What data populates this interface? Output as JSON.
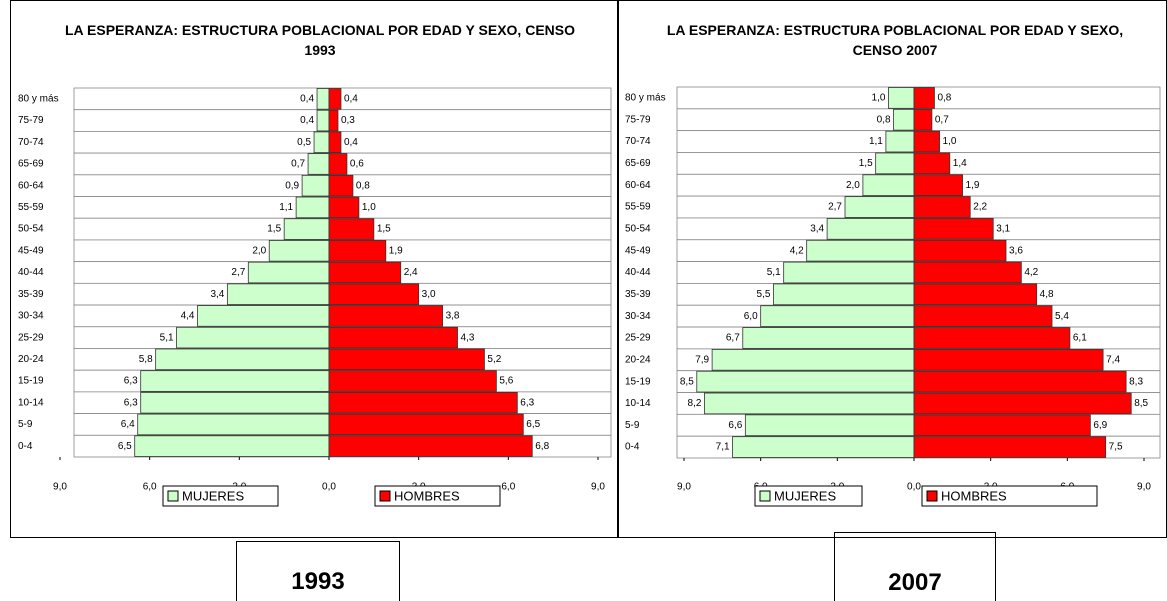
{
  "chart_data": [
    {
      "type": "pyramid",
      "title": "LA ESPERANZA: ESTRUCTURA POBLACIONAL POR EDAD Y SEXO, CENSO 1993",
      "caption": "1993",
      "categories": [
        "80 y más",
        "75-79",
        "70-74",
        "65-69",
        "60-64",
        "55-59",
        "50-54",
        "45-49",
        "40-44",
        "35-39",
        "30-34",
        "25-29",
        "20-24",
        "15-19",
        "10-14",
        "5-9",
        "0-4"
      ],
      "series": [
        {
          "name": "MUJERES",
          "color": "#ccffcc",
          "values": [
            0.4,
            0.4,
            0.5,
            0.7,
            0.9,
            1.1,
            1.5,
            2.0,
            2.7,
            3.4,
            4.4,
            5.1,
            5.8,
            6.3,
            6.3,
            6.4,
            6.5
          ],
          "value_labels": [
            "0,4",
            "0,4",
            "0,5",
            "0,7",
            "0,9",
            "1,1",
            "1,5",
            "2,0",
            "2,7",
            "3,4",
            "4,4",
            "5,1",
            "5,8",
            "6,3",
            "6,3",
            "6,4",
            "6,5"
          ]
        },
        {
          "name": "HOMBRES",
          "color": "#ff0000",
          "values": [
            0.4,
            0.3,
            0.4,
            0.6,
            0.8,
            1.0,
            1.5,
            1.9,
            2.4,
            3.0,
            3.8,
            4.3,
            5.2,
            5.6,
            6.3,
            6.5,
            6.8
          ],
          "value_labels": [
            "0,4",
            "0,3",
            "0,4",
            "0,6",
            "0,8",
            "1,0",
            "1,5",
            "1,9",
            "2,4",
            "3,0",
            "3,8",
            "4,3",
            "5,2",
            "5,6",
            "6,3",
            "6,5",
            "6,8"
          ]
        }
      ],
      "xlim": [
        -9,
        9
      ],
      "xticks": [
        {
          "value": -9,
          "label": "9,0"
        },
        {
          "value": -6,
          "label": "6,0"
        },
        {
          "value": -3,
          "label": "3,0"
        },
        {
          "value": 0,
          "label": "0,0"
        },
        {
          "value": 3,
          "label": "3,0"
        },
        {
          "value": 6,
          "label": "6,0"
        },
        {
          "value": 9,
          "label": "9,0"
        }
      ]
    },
    {
      "type": "pyramid",
      "title": "LA ESPERANZA: ESTRUCTURA POBLACIONAL POR EDAD Y SEXO, CENSO 2007",
      "caption": "2007",
      "categories": [
        "80 y más",
        "75-79",
        "70-74",
        "65-69",
        "60-64",
        "55-59",
        "50-54",
        "45-49",
        "40-44",
        "35-39",
        "30-34",
        "25-29",
        "20-24",
        "15-19",
        "10-14",
        "5-9",
        "0-4"
      ],
      "series": [
        {
          "name": "MUJERES",
          "color": "#ccffcc",
          "values": [
            1.0,
            0.8,
            1.1,
            1.5,
            2.0,
            2.7,
            3.4,
            4.2,
            5.1,
            5.5,
            6.0,
            6.7,
            7.9,
            8.5,
            8.2,
            6.6,
            7.1
          ],
          "value_labels": [
            "1,0",
            "0,8",
            "1,1",
            "1,5",
            "2,0",
            "2,7",
            "3,4",
            "4,2",
            "5,1",
            "5,5",
            "6,0",
            "6,7",
            "7,9",
            "8,5",
            "8,2",
            "6,6",
            "7,1"
          ]
        },
        {
          "name": "HOMBRES",
          "color": "#ff0000",
          "values": [
            0.8,
            0.7,
            1.0,
            1.4,
            1.9,
            2.2,
            3.1,
            3.6,
            4.2,
            4.8,
            5.4,
            6.1,
            7.4,
            8.3,
            8.5,
            6.9,
            7.5
          ],
          "value_labels": [
            "0,8",
            "0,7",
            "1,0",
            "1,4",
            "1,9",
            "2,2",
            "3,1",
            "3,6",
            "4,2",
            "4,8",
            "5,4",
            "6,1",
            "7,4",
            "8,3",
            "8,5",
            "6,9",
            "7,5"
          ]
        }
      ],
      "xlim": [
        -9,
        9
      ],
      "xticks": [
        {
          "value": -9,
          "label": "9,0"
        },
        {
          "value": -6,
          "label": "6,0"
        },
        {
          "value": -3,
          "label": "3,0"
        },
        {
          "value": 0,
          "label": "0,0"
        },
        {
          "value": 3,
          "label": "3,0"
        },
        {
          "value": 6,
          "label": "6,0"
        },
        {
          "value": 9,
          "label": "9,0"
        }
      ]
    }
  ]
}
